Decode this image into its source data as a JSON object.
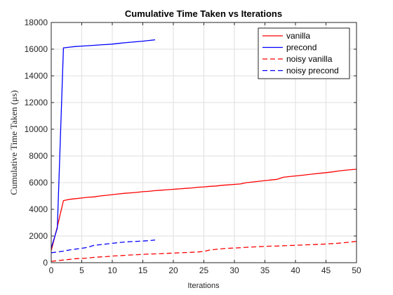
{
  "chart_data": {
    "type": "line",
    "title": "Cumulative Time Taken vs Iterations",
    "xlabel": "Iterations",
    "ylabel": "Cumulative Time Taken (μs)",
    "xlim": [
      0,
      50
    ],
    "ylim": [
      0,
      18000
    ],
    "xticks": [
      0,
      5,
      10,
      15,
      20,
      25,
      30,
      35,
      40,
      45,
      50
    ],
    "yticks": [
      0,
      2000,
      4000,
      6000,
      8000,
      10000,
      12000,
      14000,
      16000,
      18000
    ],
    "grid": true,
    "legend_position": "top-right",
    "series": [
      {
        "name": "vanilla",
        "color": "#ff0000",
        "dash": "solid",
        "x": [
          0,
          1,
          2,
          3,
          4,
          5,
          6,
          7,
          8,
          9,
          10,
          11,
          12,
          13,
          14,
          15,
          16,
          17,
          18,
          19,
          20,
          21,
          22,
          23,
          24,
          25,
          26,
          27,
          28,
          29,
          30,
          31,
          32,
          33,
          34,
          35,
          36,
          37,
          38,
          39,
          40,
          41,
          42,
          43,
          44,
          45,
          46,
          47,
          48,
          49,
          50
        ],
        "y": [
          900,
          2700,
          4650,
          4750,
          4800,
          4850,
          4900,
          4930,
          5000,
          5050,
          5100,
          5150,
          5200,
          5230,
          5270,
          5320,
          5350,
          5400,
          5430,
          5470,
          5500,
          5530,
          5570,
          5600,
          5650,
          5680,
          5720,
          5750,
          5800,
          5830,
          5870,
          5900,
          6000,
          6050,
          6100,
          6150,
          6200,
          6250,
          6400,
          6450,
          6500,
          6550,
          6600,
          6650,
          6700,
          6750,
          6800,
          6870,
          6920,
          6970,
          7000
        ]
      },
      {
        "name": "precond",
        "color": "#0000ff",
        "dash": "solid",
        "x": [
          0,
          1,
          2,
          3,
          4,
          5,
          6,
          7,
          8,
          9,
          10,
          11,
          12,
          13,
          14,
          15,
          16,
          17
        ],
        "y": [
          1100,
          2600,
          16100,
          16150,
          16200,
          16230,
          16260,
          16290,
          16320,
          16350,
          16380,
          16430,
          16480,
          16520,
          16560,
          16600,
          16650,
          16700
        ]
      },
      {
        "name": "noisy vanilla",
        "color": "#ff0000",
        "dash": "dashed",
        "x": [
          0,
          1,
          2,
          3,
          4,
          5,
          6,
          7,
          8,
          9,
          10,
          11,
          12,
          13,
          14,
          15,
          16,
          17,
          18,
          19,
          20,
          21,
          22,
          23,
          24,
          25,
          26,
          27,
          28,
          29,
          30,
          31,
          32,
          33,
          34,
          35,
          36,
          37,
          38,
          39,
          40,
          41,
          42,
          43,
          44,
          45,
          46,
          47,
          48,
          49,
          50
        ],
        "y": [
          100,
          150,
          200,
          250,
          300,
          320,
          350,
          400,
          430,
          450,
          500,
          520,
          550,
          580,
          600,
          620,
          650,
          660,
          680,
          700,
          720,
          740,
          760,
          780,
          800,
          850,
          950,
          1000,
          1050,
          1080,
          1100,
          1120,
          1150,
          1180,
          1200,
          1220,
          1240,
          1250,
          1270,
          1290,
          1300,
          1320,
          1340,
          1360,
          1380,
          1400,
          1430,
          1460,
          1500,
          1550,
          1600
        ]
      },
      {
        "name": "noisy precond",
        "color": "#0000ff",
        "dash": "dashed",
        "x": [
          0,
          1,
          2,
          3,
          4,
          5,
          6,
          7,
          8,
          9,
          10,
          11,
          12,
          13,
          14,
          15,
          16,
          17
        ],
        "y": [
          750,
          800,
          870,
          950,
          1020,
          1080,
          1150,
          1300,
          1350,
          1400,
          1450,
          1500,
          1550,
          1580,
          1600,
          1620,
          1650,
          1700
        ]
      }
    ]
  }
}
